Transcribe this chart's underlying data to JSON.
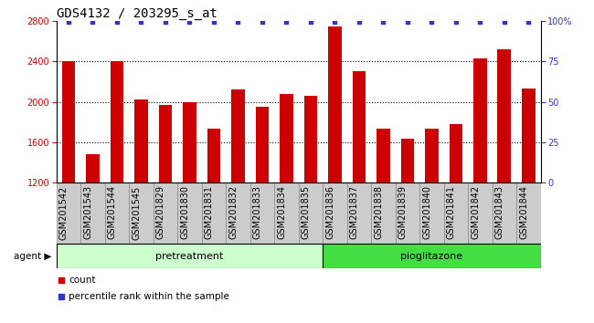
{
  "title": "GDS4132 / 203295_s_at",
  "categories": [
    "GSM201542",
    "GSM201543",
    "GSM201544",
    "GSM201545",
    "GSM201829",
    "GSM201830",
    "GSM201831",
    "GSM201832",
    "GSM201833",
    "GSM201834",
    "GSM201835",
    "GSM201836",
    "GSM201837",
    "GSM201838",
    "GSM201839",
    "GSM201840",
    "GSM201841",
    "GSM201842",
    "GSM201843",
    "GSM201844"
  ],
  "bar_values": [
    2400,
    1480,
    2400,
    2020,
    1970,
    2000,
    1730,
    2120,
    1950,
    2080,
    2060,
    2750,
    2300,
    1730,
    1630,
    1730,
    1780,
    2430,
    2520,
    2130
  ],
  "bar_color": "#cc0000",
  "percentile_color": "#3333cc",
  "ylim_left": [
    1200,
    2800
  ],
  "ylim_right": [
    0,
    100
  ],
  "yticks_left": [
    1200,
    1600,
    2000,
    2400,
    2800
  ],
  "yticks_right": [
    0,
    25,
    50,
    75,
    100
  ],
  "yticklabels_right": [
    "0",
    "25",
    "50",
    "75",
    "100%"
  ],
  "grid_values": [
    1600,
    2000,
    2400
  ],
  "pretreatment_indices": [
    0,
    1,
    2,
    3,
    4,
    5,
    6,
    7,
    8,
    9,
    10
  ],
  "pioglitazone_indices": [
    11,
    12,
    13,
    14,
    15,
    16,
    17,
    18,
    19
  ],
  "pretreatment_color": "#ccffcc",
  "pioglitazone_color": "#44dd44",
  "agent_label": "agent",
  "pretreatment_label": "pretreatment",
  "pioglitazone_label": "pioglitazone",
  "legend_count_label": "count",
  "legend_percentile_label": "percentile rank within the sample",
  "plot_bg_color": "#ffffff",
  "xlabel_bg_color": "#cccccc",
  "title_fontsize": 10,
  "tick_label_fontsize": 7,
  "bar_width": 0.55
}
